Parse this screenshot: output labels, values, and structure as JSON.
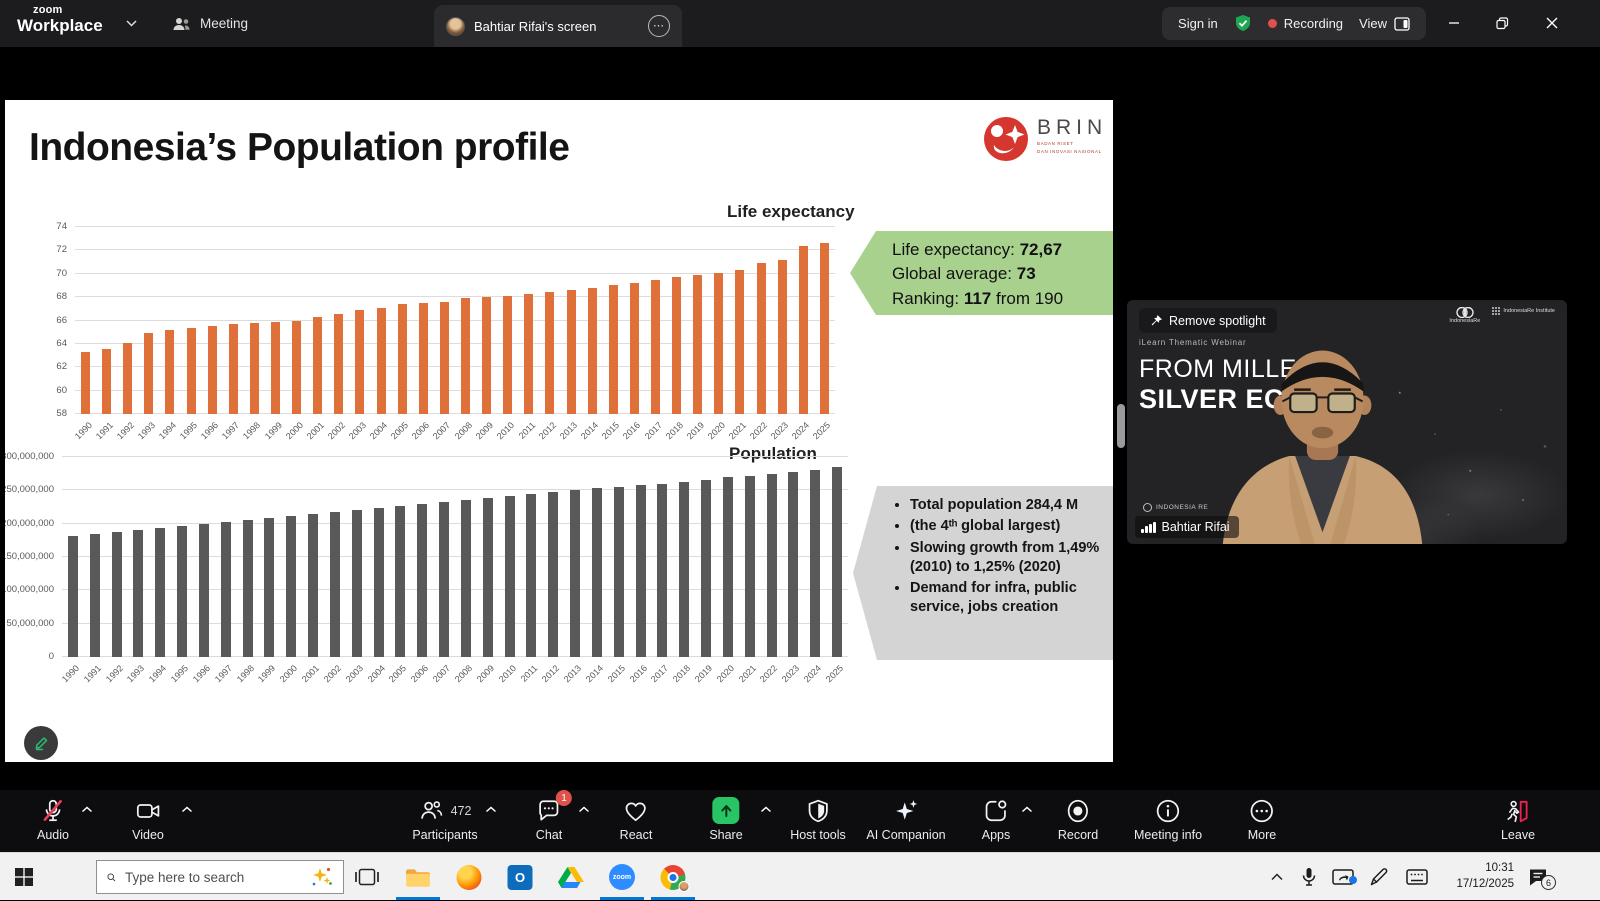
{
  "titlebar": {
    "brand_line1": "zoom",
    "brand_line2": "Workplace",
    "meeting_tab": "Meeting",
    "share_tab": "Bahtiar Rifai's screen",
    "sign_in": "Sign in",
    "recording": "Recording",
    "view": "View"
  },
  "slide": {
    "title": "Indonesia’s Population profile",
    "logo": {
      "name": "BRIN",
      "subtitle1": "BADAN RISET",
      "subtitle2": "DAN INOVASI NASIONAL"
    },
    "life_callout": {
      "l1_pre": "Life expectancy: ",
      "l1_val": "72,67",
      "l2_pre": "Global average: ",
      "l2_val": "73",
      "l3_pre": "Ranking: ",
      "l3_val": "117",
      "l3_post": " from 190"
    },
    "pop_callout_bullets": [
      "Total population 284,4 M",
      "(the 4ᵗʰ global largest)",
      "Slowing growth from 1,49% (2010) to 1,25% (2020)",
      "Demand for infra, public service, jobs creation"
    ]
  },
  "chart_data": [
    {
      "type": "bar",
      "title": "Life expectancy",
      "xlabel": "",
      "ylabel": "",
      "ylim": [
        58,
        74
      ],
      "ystep": 2,
      "y_format": "plain",
      "grid": true,
      "legend": "none",
      "x_label_rotation": -45,
      "bar_color": "#E0703A",
      "categories": [
        "1990",
        "1991",
        "1992",
        "1993",
        "1994",
        "1995",
        "1996",
        "1997",
        "1998",
        "1999",
        "2000",
        "2001",
        "2002",
        "2003",
        "2004",
        "2005",
        "2006",
        "2007",
        "2008",
        "2009",
        "2010",
        "2011",
        "2012",
        "2013",
        "2014",
        "2015",
        "2016",
        "2017",
        "2018",
        "2019",
        "2020",
        "2021",
        "2022",
        "2023",
        "2024",
        "2025"
      ],
      "values": [
        63.3,
        63.6,
        64.1,
        64.9,
        65.2,
        65.4,
        65.5,
        65.7,
        65.8,
        65.9,
        66.0,
        66.3,
        66.6,
        66.9,
        67.1,
        67.4,
        67.5,
        67.6,
        67.9,
        68.0,
        68.1,
        68.3,
        68.4,
        68.6,
        68.8,
        69.0,
        69.2,
        69.5,
        69.7,
        69.9,
        70.1,
        70.3,
        70.9,
        71.2,
        72.4,
        72.67
      ]
    },
    {
      "type": "bar",
      "title": "Population",
      "xlabel": "",
      "ylabel": "",
      "ylim": [
        0,
        300000000
      ],
      "ystep": 50000000,
      "y_format": "thousands",
      "grid": true,
      "legend": "none",
      "x_label_rotation": -45,
      "bar_color": "#595959",
      "categories": [
        "1990",
        "1991",
        "1992",
        "1993",
        "1994",
        "1995",
        "1996",
        "1997",
        "1998",
        "1999",
        "2000",
        "2001",
        "2002",
        "2003",
        "2004",
        "2005",
        "2006",
        "2007",
        "2008",
        "2009",
        "2010",
        "2011",
        "2012",
        "2013",
        "2014",
        "2015",
        "2016",
        "2017",
        "2018",
        "2019",
        "2020",
        "2021",
        "2022",
        "2023",
        "2024",
        "2025"
      ],
      "values": [
        181000000,
        185000000,
        188000000,
        191000000,
        194000000,
        197000000,
        200000000,
        203000000,
        206000000,
        209000000,
        212000000,
        214000000,
        217000000,
        220000000,
        223000000,
        226000000,
        229000000,
        232000000,
        235000000,
        238000000,
        242000000,
        245000000,
        247000000,
        250000000,
        253000000,
        255000000,
        258000000,
        260000000,
        263000000,
        265000000,
        270000000,
        272000000,
        275000000,
        278000000,
        281000000,
        284400000
      ]
    }
  ],
  "video": {
    "remove_spotlight": "Remove spotlight",
    "logo1": "IndonesiaRe",
    "logo2": "IndonesiaRe Institute",
    "webinar_label": "iLearn Thematic Webinar",
    "title_line1": "FROM MILLENNI",
    "title_line2": "SILVER ECO",
    "watermark": "INDONESIA RE",
    "participant_name": "Bahtiar Rifai"
  },
  "toolbar": {
    "audio": "Audio",
    "video": "Video",
    "participants": "Participants",
    "participants_count": "472",
    "chat": "Chat",
    "chat_badge": "1",
    "react": "React",
    "share": "Share",
    "host_tools": "Host tools",
    "ai_companion": "AI Companion",
    "apps": "Apps",
    "record": "Record",
    "meeting_info": "Meeting info",
    "more": "More",
    "leave": "Leave"
  },
  "taskbar": {
    "search_placeholder": "Type here to search",
    "time": "10:31",
    "date": "17/12/2025",
    "notification_count": "6"
  },
  "colors": {
    "share_green": "#29c463",
    "recording_red": "#e0514c",
    "callout_green": "#A9D18E",
    "callout_gray": "#D4D4D4",
    "bar_orange": "#E0703A",
    "bar_gray": "#595959",
    "taskbar_accent": "#0078D7",
    "zoom_blue": "#2D8CFF"
  }
}
